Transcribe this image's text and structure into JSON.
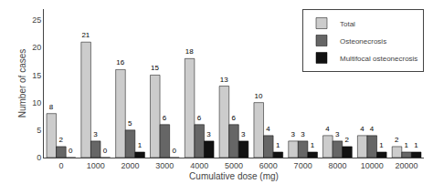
{
  "chart_data": {
    "type": "bar",
    "categories": [
      "0",
      "1000",
      "2000",
      "3000",
      "4000",
      "5000",
      "6000",
      "7000",
      "8000",
      "10000",
      "20000"
    ],
    "series": [
      {
        "name": "Total",
        "color": "#cccccc",
        "values": [
          8,
          21,
          16,
          15,
          18,
          13,
          10,
          3,
          4,
          4,
          2
        ]
      },
      {
        "name": "Osteonecrosis",
        "color": "#666666",
        "values": [
          2,
          3,
          5,
          6,
          6,
          6,
          4,
          3,
          3,
          4,
          1
        ]
      },
      {
        "name": "Multifocal osteonecrosis",
        "color": "#111111",
        "values": [
          0,
          0,
          1,
          0,
          3,
          3,
          1,
          1,
          2,
          1,
          1
        ]
      }
    ],
    "xlabel": "Cumulative dose (mg)",
    "ylabel": "Number of cases",
    "ylim": [
      0,
      27
    ],
    "yticks": [
      0,
      5,
      10,
      15,
      20,
      25
    ],
    "grid": false,
    "legend": "upper right",
    "data_labels": true
  }
}
